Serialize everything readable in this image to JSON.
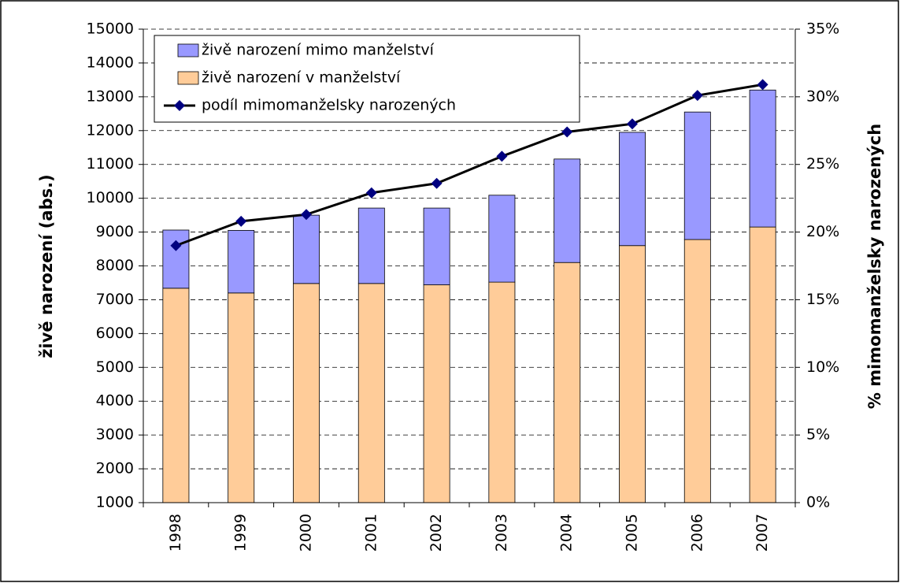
{
  "chart_data": {
    "type": "bar",
    "categories": [
      "1998",
      "1999",
      "2000",
      "2001",
      "2002",
      "2003",
      "2004",
      "2005",
      "2006",
      "2007"
    ],
    "series": [
      {
        "name": "živě narození v manželství",
        "color": "#ffcc99",
        "values": [
          7340,
          7200,
          7480,
          7480,
          7440,
          7520,
          8100,
          8600,
          8780,
          9150
        ]
      },
      {
        "name": "živě narození mimo manželství",
        "color": "#9999ff",
        "values": [
          1720,
          1850,
          2020,
          2230,
          2270,
          2570,
          3060,
          3350,
          3770,
          4050
        ]
      },
      {
        "name": "podíl mimomanželsky narozených",
        "color": "#000000",
        "marker_color": "#000080",
        "axis": "y2",
        "type": "line",
        "values": [
          19.0,
          20.8,
          21.3,
          22.9,
          23.6,
          25.6,
          27.4,
          28.0,
          30.1,
          30.9
        ]
      }
    ],
    "ylabel": "živě narození (abs.)",
    "y2label": "% mimomanželsky narozených",
    "ylim": [
      1000,
      15000
    ],
    "yticks": [
      1000,
      2000,
      3000,
      4000,
      5000,
      6000,
      7000,
      8000,
      9000,
      10000,
      11000,
      12000,
      13000,
      14000,
      15000
    ],
    "y2lim": [
      0,
      35
    ],
    "y2ticks": [
      {
        "value": 0,
        "label": "0%"
      },
      {
        "value": 5,
        "label": "5%"
      },
      {
        "value": 10,
        "label": "10%"
      },
      {
        "value": 15,
        "label": "15%"
      },
      {
        "value": 20,
        "label": "20%"
      },
      {
        "value": 25,
        "label": "25%"
      },
      {
        "value": 30,
        "label": "30%"
      },
      {
        "value": 35,
        "label": "35%"
      }
    ],
    "grid": true,
    "stacked": true,
    "legend": "upper left"
  }
}
